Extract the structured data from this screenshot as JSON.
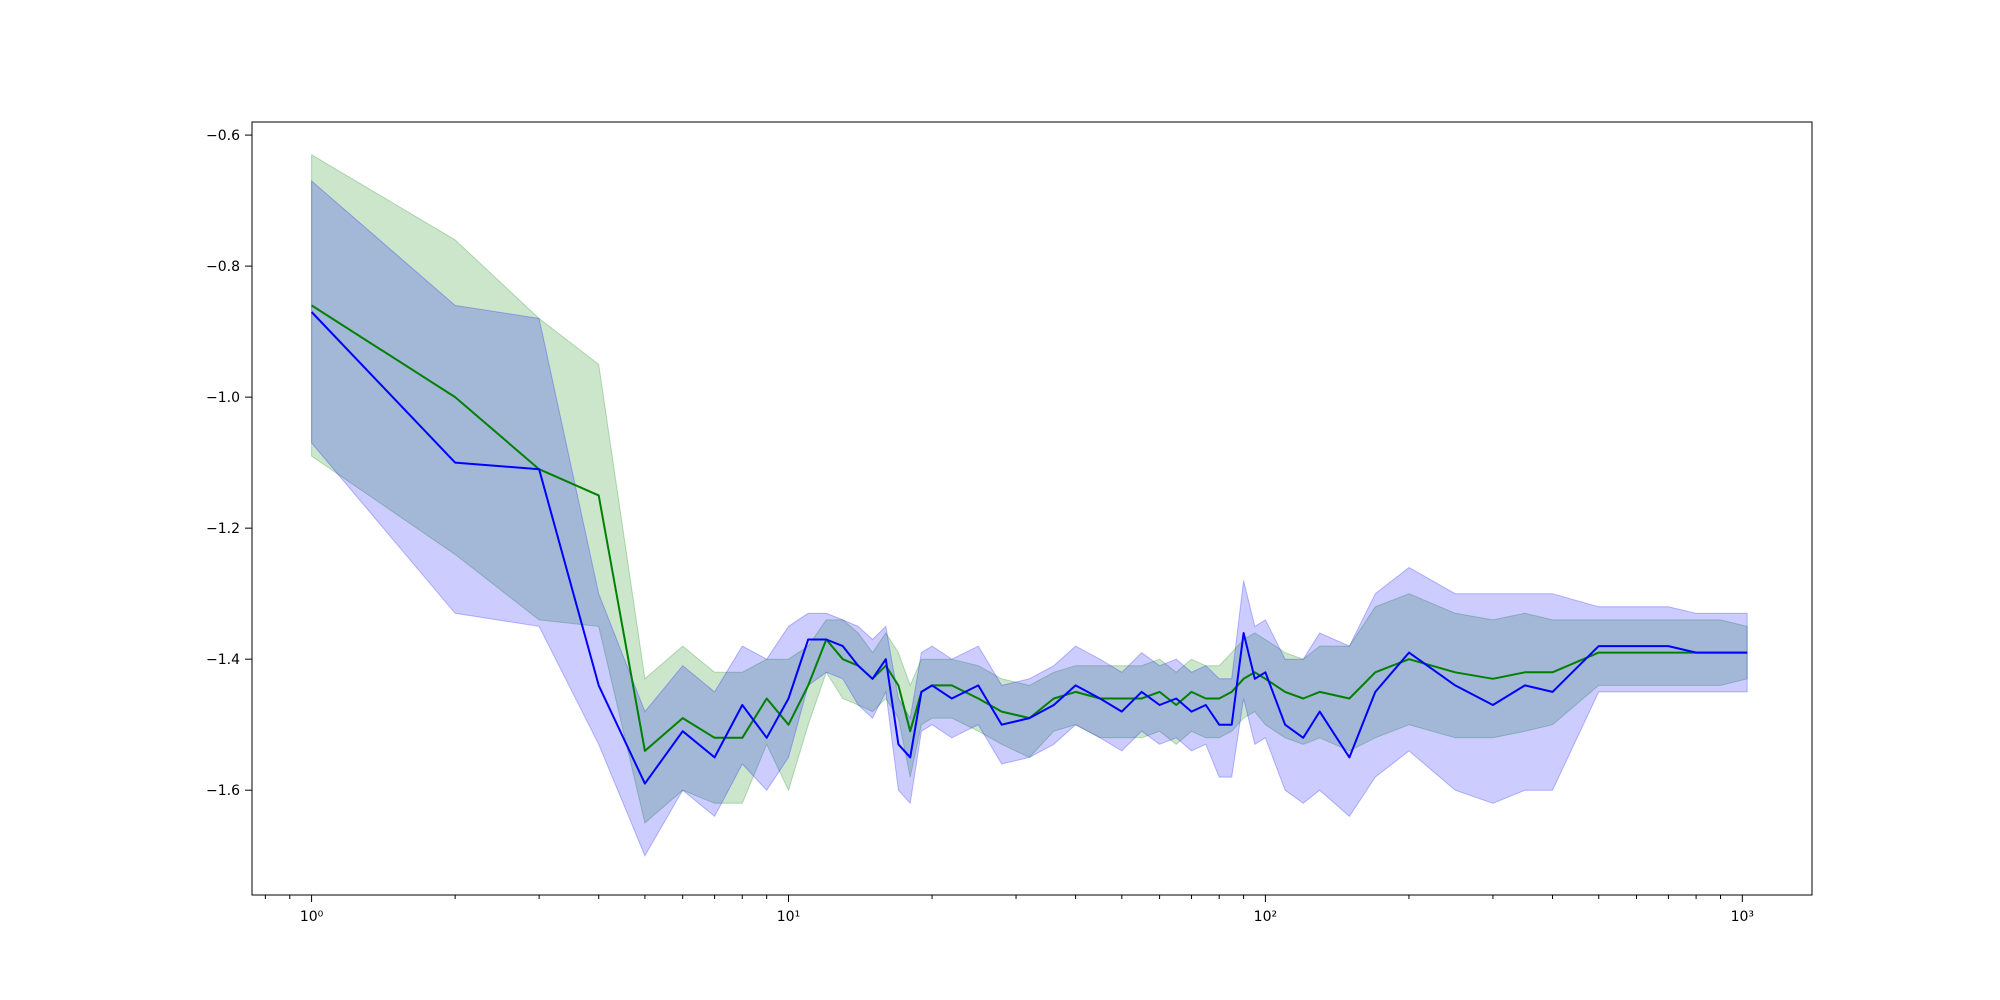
{
  "chart_data": {
    "type": "line",
    "title": "",
    "xlabel": "",
    "ylabel": "",
    "x_scale": "log",
    "xlim": [
      0.75,
      1400
    ],
    "ylim": [
      -1.76,
      -0.58
    ],
    "grid": false,
    "x_major_ticks": [
      {
        "value": 1,
        "label": "10⁰"
      },
      {
        "value": 10,
        "label": "10¹"
      },
      {
        "value": 100,
        "label": "10²"
      },
      {
        "value": 1000,
        "label": "10³"
      }
    ],
    "y_ticks": [
      {
        "value": -0.6,
        "label": "−0.6"
      },
      {
        "value": -0.8,
        "label": "−0.8"
      },
      {
        "value": -1.0,
        "label": "−1.0"
      },
      {
        "value": -1.2,
        "label": "−1.2"
      },
      {
        "value": -1.4,
        "label": "−1.4"
      },
      {
        "value": -1.6,
        "label": "−1.6"
      }
    ],
    "series": [
      {
        "color": "#008000",
        "band_color": "#008000",
        "band_opacity": 0.2,
        "x": [
          1,
          2,
          3,
          4,
          5,
          6,
          7,
          8,
          9,
          10,
          11,
          12,
          13,
          14,
          15,
          16,
          17,
          18,
          19,
          20,
          22,
          25,
          28,
          32,
          36,
          40,
          45,
          50,
          55,
          60,
          65,
          70,
          75,
          80,
          85,
          90,
          95,
          100,
          110,
          120,
          130,
          150,
          170,
          200,
          250,
          300,
          350,
          400,
          500,
          600,
          700,
          800,
          900,
          1024
        ],
        "y": [
          -0.86,
          -1.0,
          -1.11,
          -1.15,
          -1.54,
          -1.49,
          -1.52,
          -1.52,
          -1.46,
          -1.5,
          -1.44,
          -1.37,
          -1.4,
          -1.41,
          -1.43,
          -1.41,
          -1.44,
          -1.51,
          -1.45,
          -1.44,
          -1.44,
          -1.46,
          -1.48,
          -1.49,
          -1.46,
          -1.45,
          -1.46,
          -1.46,
          -1.46,
          -1.45,
          -1.47,
          -1.45,
          -1.46,
          -1.46,
          -1.45,
          -1.43,
          -1.42,
          -1.43,
          -1.45,
          -1.46,
          -1.45,
          -1.46,
          -1.42,
          -1.4,
          -1.42,
          -1.43,
          -1.42,
          -1.42,
          -1.39,
          -1.39,
          -1.39,
          -1.39,
          -1.39,
          -1.39
        ],
        "upper": [
          -0.63,
          -0.76,
          -0.88,
          -0.95,
          -1.43,
          -1.38,
          -1.42,
          -1.42,
          -1.4,
          -1.4,
          -1.38,
          -1.34,
          -1.34,
          -1.36,
          -1.39,
          -1.36,
          -1.39,
          -1.44,
          -1.4,
          -1.4,
          -1.4,
          -1.41,
          -1.43,
          -1.44,
          -1.42,
          -1.41,
          -1.41,
          -1.41,
          -1.41,
          -1.4,
          -1.42,
          -1.4,
          -1.41,
          -1.41,
          -1.39,
          -1.37,
          -1.36,
          -1.37,
          -1.39,
          -1.4,
          -1.38,
          -1.38,
          -1.32,
          -1.3,
          -1.33,
          -1.34,
          -1.33,
          -1.34,
          -1.34,
          -1.34,
          -1.34,
          -1.34,
          -1.34,
          -1.35
        ],
        "lower": [
          -1.09,
          -1.24,
          -1.34,
          -1.35,
          -1.65,
          -1.6,
          -1.62,
          -1.62,
          -1.53,
          -1.6,
          -1.5,
          -1.42,
          -1.46,
          -1.47,
          -1.48,
          -1.46,
          -1.49,
          -1.58,
          -1.5,
          -1.49,
          -1.49,
          -1.51,
          -1.53,
          -1.55,
          -1.51,
          -1.5,
          -1.52,
          -1.52,
          -1.52,
          -1.51,
          -1.53,
          -1.51,
          -1.52,
          -1.52,
          -1.51,
          -1.49,
          -1.48,
          -1.5,
          -1.52,
          -1.53,
          -1.52,
          -1.54,
          -1.52,
          -1.5,
          -1.52,
          -1.52,
          -1.51,
          -1.5,
          -1.44,
          -1.44,
          -1.44,
          -1.44,
          -1.44,
          -1.43
        ]
      },
      {
        "color": "#0000ff",
        "band_color": "#0000ff",
        "band_opacity": 0.2,
        "x": [
          1,
          2,
          3,
          4,
          5,
          6,
          7,
          8,
          9,
          10,
          11,
          12,
          13,
          14,
          15,
          16,
          17,
          18,
          19,
          20,
          22,
          25,
          28,
          32,
          36,
          40,
          45,
          50,
          55,
          60,
          65,
          70,
          75,
          80,
          85,
          90,
          95,
          100,
          110,
          120,
          130,
          150,
          170,
          200,
          250,
          300,
          350,
          400,
          500,
          600,
          700,
          800,
          900,
          1024
        ],
        "y": [
          -0.87,
          -1.1,
          -1.11,
          -1.44,
          -1.59,
          -1.51,
          -1.55,
          -1.47,
          -1.52,
          -1.46,
          -1.37,
          -1.37,
          -1.38,
          -1.41,
          -1.43,
          -1.4,
          -1.53,
          -1.55,
          -1.45,
          -1.44,
          -1.46,
          -1.44,
          -1.5,
          -1.49,
          -1.47,
          -1.44,
          -1.46,
          -1.48,
          -1.45,
          -1.47,
          -1.46,
          -1.48,
          -1.47,
          -1.5,
          -1.5,
          -1.36,
          -1.43,
          -1.42,
          -1.5,
          -1.52,
          -1.48,
          -1.55,
          -1.45,
          -1.39,
          -1.44,
          -1.47,
          -1.44,
          -1.45,
          -1.38,
          -1.38,
          -1.38,
          -1.39,
          -1.39,
          -1.39
        ],
        "upper": [
          -0.67,
          -0.86,
          -0.88,
          -1.3,
          -1.48,
          -1.41,
          -1.45,
          -1.38,
          -1.4,
          -1.35,
          -1.33,
          -1.33,
          -1.34,
          -1.35,
          -1.37,
          -1.35,
          -1.46,
          -1.49,
          -1.39,
          -1.38,
          -1.4,
          -1.38,
          -1.44,
          -1.43,
          -1.41,
          -1.38,
          -1.4,
          -1.42,
          -1.39,
          -1.41,
          -1.4,
          -1.42,
          -1.41,
          -1.43,
          -1.43,
          -1.28,
          -1.35,
          -1.34,
          -1.4,
          -1.4,
          -1.36,
          -1.38,
          -1.3,
          -1.26,
          -1.3,
          -1.3,
          -1.3,
          -1.3,
          -1.32,
          -1.32,
          -1.32,
          -1.33,
          -1.33,
          -1.33
        ],
        "lower": [
          -1.07,
          -1.33,
          -1.35,
          -1.53,
          -1.7,
          -1.6,
          -1.64,
          -1.56,
          -1.6,
          -1.55,
          -1.44,
          -1.42,
          -1.43,
          -1.47,
          -1.49,
          -1.45,
          -1.6,
          -1.62,
          -1.51,
          -1.5,
          -1.52,
          -1.5,
          -1.56,
          -1.55,
          -1.53,
          -1.5,
          -1.52,
          -1.54,
          -1.51,
          -1.53,
          -1.52,
          -1.54,
          -1.53,
          -1.58,
          -1.58,
          -1.46,
          -1.53,
          -1.52,
          -1.6,
          -1.62,
          -1.6,
          -1.64,
          -1.58,
          -1.54,
          -1.6,
          -1.62,
          -1.6,
          -1.6,
          -1.45,
          -1.45,
          -1.45,
          -1.45,
          -1.45,
          -1.45
        ]
      }
    ]
  }
}
